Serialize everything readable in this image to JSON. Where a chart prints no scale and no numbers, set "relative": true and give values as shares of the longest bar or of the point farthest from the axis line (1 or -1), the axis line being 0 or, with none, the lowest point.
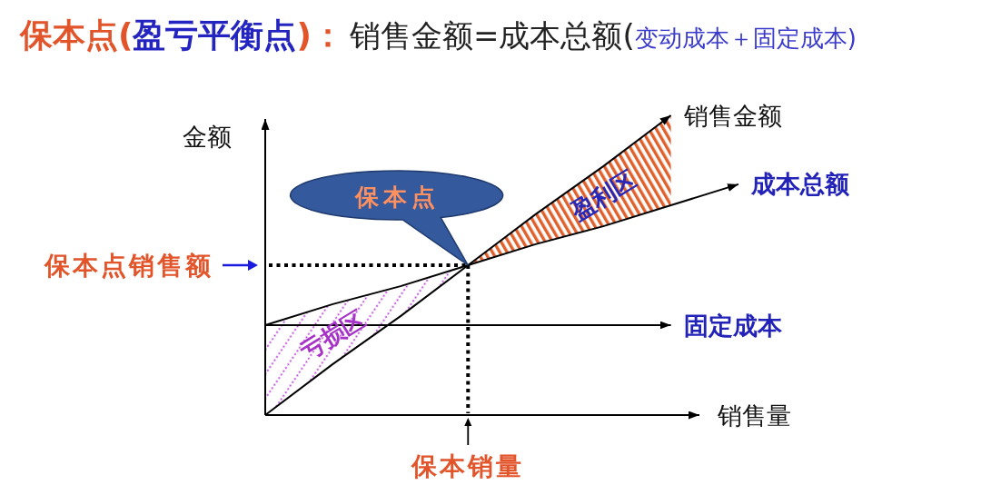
{
  "chart_data": {
    "type": "line",
    "title": "保本点(盈亏平衡点)：",
    "subtitle": "销售金额=成本总额(变动成本＋固定成本)",
    "xlabel": "销售量",
    "ylabel": "金额",
    "relative": true,
    "categories": [
      null,
      null,
      null,
      null,
      null,
      null,
      null,
      null
    ],
    "series": [
      {
        "name": "销售金额",
        "color": "#000000",
        "values": [
          0,
          0.17,
          0.33,
          0.5,
          0.67,
          0.83,
          1,
          null
        ]
      },
      {
        "name": "成本总额",
        "color": "#000000",
        "values": [
          0.3,
          0.37,
          0.43,
          0.5,
          0.57,
          0.63,
          0.7,
          0.77
        ]
      },
      {
        "name": "固定成本",
        "color": "#000000",
        "values": [
          0.3,
          0.3,
          0.3,
          0.3,
          0.3,
          0.3,
          0.3,
          null
        ]
      }
    ],
    "ref_lines": [
      {
        "axis": "y",
        "value": 0.5,
        "label": "保本点销售额",
        "color": "#000000",
        "line_style": "dotted"
      }
    ],
    "annotations": [
      {
        "text": "保本点",
        "y": 0.5
      },
      "盈利区",
      "亏损区",
      "保本销量"
    ]
  }
}
